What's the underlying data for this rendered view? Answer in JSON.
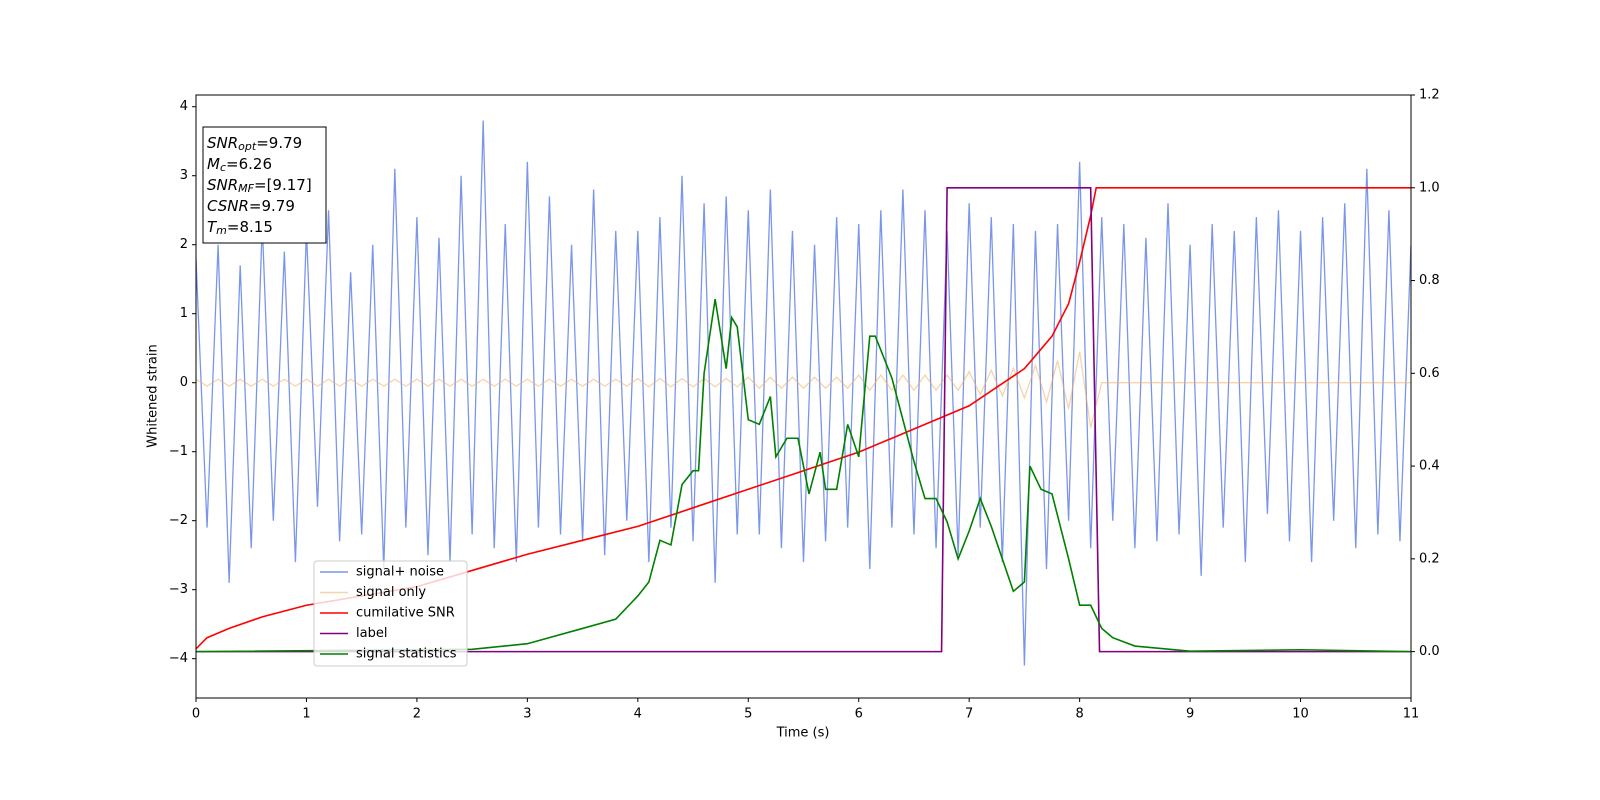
{
  "chart_data": {
    "type": "line",
    "xlabel": "Time (s)",
    "ylabel": "Whitened strain",
    "xlim": [
      0,
      11
    ],
    "ylim": [
      -4.57,
      4.17
    ],
    "y2lim": [
      -0.1,
      1.2
    ],
    "xticks": [
      0,
      1,
      2,
      3,
      4,
      5,
      6,
      7,
      8,
      9,
      10,
      11
    ],
    "yticks": [
      {
        "value": -4,
        "label": "−4"
      },
      {
        "value": -3,
        "label": "−3"
      },
      {
        "value": -2,
        "label": "−2"
      },
      {
        "value": -1,
        "label": "−1"
      },
      0,
      1,
      2,
      3,
      4
    ],
    "y2ticks": [
      {
        "value": 0,
        "label": "0.0"
      },
      {
        "value": 0.2,
        "label": "0.2"
      },
      {
        "value": 0.4,
        "label": "0.4"
      },
      {
        "value": 0.6,
        "label": "0.6"
      },
      {
        "value": 0.8,
        "label": "0.8"
      },
      {
        "value": 1.0,
        "label": "1.0"
      },
      {
        "value": 1.2,
        "label": "1.2"
      }
    ],
    "legend": "lower left",
    "x": [
      0,
      0.1,
      0.2,
      0.3,
      0.4,
      0.5,
      0.6,
      0.7,
      0.8,
      0.9,
      1,
      1.1,
      1.2,
      1.3,
      1.4,
      1.5,
      1.6,
      1.7,
      1.8,
      1.9,
      2,
      2.1,
      2.2,
      2.3,
      2.4,
      2.5,
      2.6,
      2.7,
      2.8,
      2.9,
      3,
      3.1,
      3.2,
      3.3,
      3.4,
      3.5,
      3.6,
      3.7,
      3.8,
      3.9,
      4,
      4.1,
      4.2,
      4.3,
      4.4,
      4.5,
      4.6,
      4.7,
      4.8,
      4.9,
      5,
      5.1,
      5.2,
      5.3,
      5.4,
      5.5,
      5.6,
      5.7,
      5.8,
      5.9,
      6,
      6.1,
      6.2,
      6.3,
      6.4,
      6.5,
      6.6,
      6.7,
      6.8,
      6.9,
      7,
      7.1,
      7.2,
      7.3,
      7.4,
      7.5,
      7.6,
      7.7,
      7.8,
      7.9,
      8,
      8.1,
      8.2,
      8.3,
      8.4,
      8.5,
      8.6,
      8.7,
      8.8,
      8.9,
      9,
      9.1,
      9.2,
      9.3,
      9.4,
      9.5,
      9.6,
      9.7,
      9.8,
      9.9,
      10,
      10.1,
      10.2,
      10.3,
      10.4,
      10.5,
      10.6,
      10.7,
      10.8,
      10.9,
      11
    ],
    "series": [
      {
        "name": "signal+ noise",
        "color": "#7a96ea",
        "axis": "y",
        "values": [
          1.8,
          -2.1,
          2.0,
          -2.9,
          1.7,
          -2.4,
          2.3,
          -2.0,
          1.9,
          -2.6,
          2.2,
          -1.8,
          2.5,
          -2.3,
          1.6,
          -2.2,
          2.0,
          -2.7,
          3.1,
          -2.1,
          2.4,
          -2.5,
          2.1,
          -2.6,
          3.0,
          -2.2,
          3.8,
          -2.4,
          2.3,
          -2.6,
          3.2,
          -2.1,
          2.7,
          -2.2,
          2.0,
          -2.3,
          2.8,
          -2.5,
          2.2,
          -2.0,
          2.2,
          -2.6,
          2.4,
          -2.1,
          3.0,
          -2.3,
          2.6,
          -2.9,
          2.7,
          -2.2,
          2.5,
          -2.2,
          2.8,
          -2.4,
          2.2,
          -2.6,
          2.0,
          -2.3,
          2.4,
          -2.1,
          2.3,
          -2.7,
          2.5,
          -2.1,
          2.8,
          -2.2,
          2.5,
          -2.4,
          2.2,
          -2.5,
          2.6,
          -2.1,
          2.4,
          -2.6,
          2.3,
          -4.1,
          2.2,
          -2.7,
          2.3,
          -2.0,
          3.2,
          -2.4,
          2.4,
          -2.0,
          2.3,
          -2.4,
          2.1,
          -2.3,
          2.6,
          -2.2,
          2.0,
          -2.8,
          2.3,
          -2.1,
          2.2,
          -2.6,
          2.4,
          -1.9,
          2.5,
          -2.3,
          2.2,
          -2.6,
          2.4,
          -2.0,
          2.6,
          -2.4,
          3.1,
          -2.2,
          2.5,
          -2.3,
          2.0
        ]
      },
      {
        "name": "signal only",
        "color": "#f0b060",
        "axis": "y",
        "values": [
          0.05,
          -0.05,
          0.05,
          -0.05,
          0.05,
          -0.05,
          0.05,
          -0.05,
          0.05,
          -0.05,
          0.05,
          -0.05,
          0.05,
          -0.05,
          0.05,
          -0.05,
          0.05,
          -0.05,
          0.05,
          -0.05,
          0.05,
          -0.05,
          0.05,
          -0.05,
          0.05,
          -0.05,
          0.05,
          -0.05,
          0.05,
          -0.05,
          0.05,
          -0.05,
          0.05,
          -0.05,
          0.05,
          -0.05,
          0.05,
          -0.05,
          0.05,
          -0.05,
          0.06,
          -0.06,
          0.06,
          -0.06,
          0.06,
          -0.06,
          0.06,
          -0.06,
          0.06,
          -0.06,
          0.08,
          -0.08,
          0.08,
          -0.08,
          0.08,
          -0.08,
          0.08,
          -0.08,
          0.08,
          -0.08,
          0.11,
          -0.11,
          0.11,
          -0.11,
          0.11,
          -0.11,
          0.11,
          -0.11,
          0.11,
          -0.11,
          0.16,
          -0.17,
          0.18,
          -0.19,
          0.21,
          -0.22,
          0.25,
          -0.28,
          0.32,
          -0.38,
          0.45,
          -0.65,
          0,
          0,
          0,
          0,
          0,
          0,
          0,
          0,
          0,
          0,
          0,
          0,
          0,
          0,
          0,
          0,
          0,
          0,
          0,
          0,
          0,
          0,
          0,
          0,
          0,
          0,
          0,
          0,
          0
        ]
      },
      {
        "name": "cumilative SNR",
        "color": "#ff0000",
        "axis": "y2",
        "x": [
          0,
          0.1,
          0.3,
          0.6,
          1,
          1.5,
          2,
          2.5,
          3,
          3.5,
          4,
          4.5,
          5,
          5.5,
          6,
          6.5,
          7,
          7.25,
          7.5,
          7.75,
          7.9,
          8,
          8.05,
          8.1,
          8.15,
          11
        ],
        "values": [
          0.006,
          0.03,
          0.05,
          0.075,
          0.1,
          0.12,
          0.14,
          0.175,
          0.21,
          0.24,
          0.27,
          0.31,
          0.35,
          0.39,
          0.43,
          0.48,
          0.53,
          0.57,
          0.61,
          0.68,
          0.75,
          0.84,
          0.89,
          0.94,
          1.0,
          1.0
        ]
      },
      {
        "name": "label",
        "color": "#800080",
        "axis": "y2",
        "x": [
          0,
          6.75,
          6.8,
          8.1,
          8.18,
          11
        ],
        "values": [
          0,
          0,
          1,
          1,
          0,
          0
        ]
      },
      {
        "name": "signal statistics",
        "color": "#008000",
        "axis": "y2",
        "x": [
          0,
          2.5,
          3,
          3.5,
          3.8,
          4,
          4.1,
          4.2,
          4.3,
          4.4,
          4.5,
          4.55,
          4.6,
          4.7,
          4.8,
          4.85,
          4.9,
          5,
          5.1,
          5.2,
          5.25,
          5.35,
          5.45,
          5.55,
          5.65,
          5.7,
          5.8,
          5.9,
          6,
          6.1,
          6.15,
          6.3,
          6.5,
          6.6,
          6.7,
          6.8,
          6.9,
          7,
          7.1,
          7.2,
          7.4,
          7.5,
          7.55,
          7.65,
          7.75,
          7.9,
          8,
          8.1,
          8.2,
          8.3,
          8.5,
          9,
          10,
          11
        ],
        "values": [
          0,
          0.005,
          0.017,
          0.05,
          0.07,
          0.12,
          0.15,
          0.24,
          0.23,
          0.36,
          0.39,
          0.39,
          0.6,
          0.76,
          0.61,
          0.72,
          0.7,
          0.5,
          0.49,
          0.55,
          0.42,
          0.46,
          0.46,
          0.34,
          0.43,
          0.35,
          0.35,
          0.49,
          0.42,
          0.68,
          0.68,
          0.59,
          0.41,
          0.33,
          0.33,
          0.28,
          0.2,
          0.26,
          0.33,
          0.27,
          0.13,
          0.15,
          0.4,
          0.35,
          0.34,
          0.2,
          0.1,
          0.1,
          0.05,
          0.03,
          0.012,
          0.001,
          0.004,
          0
        ]
      }
    ],
    "annotations": [
      {
        "main": "SNR",
        "sub": "opt",
        "rest": "=9.79"
      },
      {
        "main": "M",
        "sub": "c",
        "rest": "=6.26"
      },
      {
        "main": "SNR",
        "sub": "MF",
        "rest": "=[9.17]"
      },
      {
        "main": "CSNR",
        "sub": "",
        "rest": "=9.79"
      },
      {
        "main": "T",
        "sub": "m",
        "rest": "=8.15"
      }
    ]
  }
}
